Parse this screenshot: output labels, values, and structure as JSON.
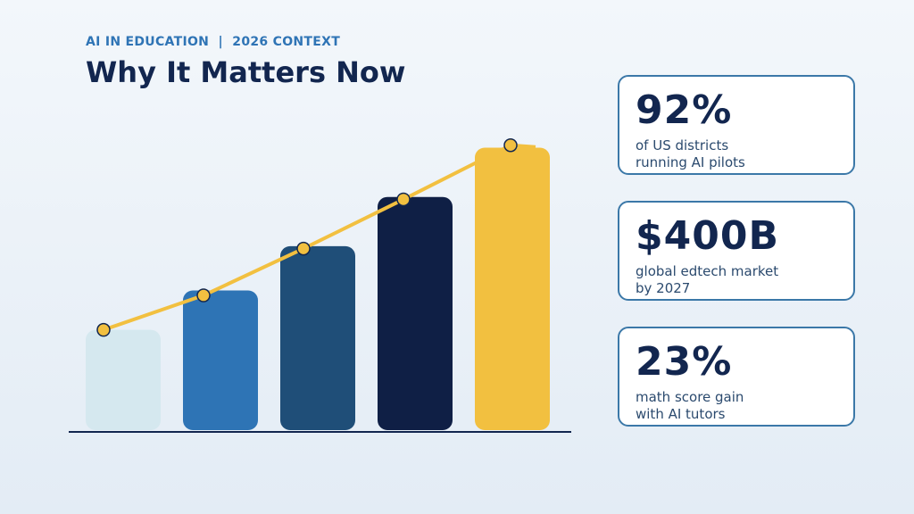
{
  "header": {
    "kicker": "AI IN EDUCATION  |  2026 CONTEXT",
    "title": "Why It Matters Now"
  },
  "chart_data": {
    "type": "bar",
    "title": "",
    "xlabel": "",
    "ylabel": "",
    "categories": [
      "",
      "",
      "",
      "",
      ""
    ],
    "values": [
      20,
      28,
      37,
      47,
      57
    ],
    "trend_line": [
      20,
      27,
      36.5,
      46.5,
      57.5
    ],
    "ylim": [
      0,
      58
    ],
    "grid": false,
    "legend": "none",
    "bar_colors": [
      "#d5e8ef",
      "#2e74b5",
      "#1f4e78",
      "#0f1f45",
      "#f2c040"
    ],
    "line_color": "#f2c040",
    "axis_color": "#12264f"
  },
  "stats": [
    {
      "value": "92%",
      "caption": "of US districts\nrunning AI pilots"
    },
    {
      "value": "$400B",
      "caption": "global edtech market\nby 2027"
    },
    {
      "value": "23%",
      "caption": "math score gain\nwith AI tutors"
    }
  ]
}
